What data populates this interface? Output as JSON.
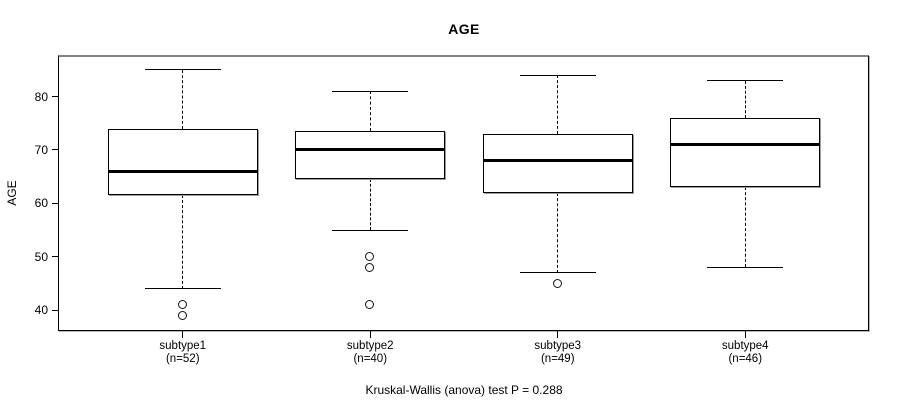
{
  "chart_data": {
    "type": "boxplot",
    "title": "AGE",
    "ylabel": "AGE",
    "xlabel": "",
    "footer": "Kruskal-Wallis (anova) test P = 0.288",
    "yticks": [
      40,
      50,
      60,
      70,
      80
    ],
    "ylim": [
      36.1,
      87.4
    ],
    "grid": false,
    "groups": [
      {
        "label": "subtype1",
        "n_label": "(n=52)",
        "n": 52,
        "whisker_low": 44,
        "q1": 61.5,
        "median": 66,
        "q3": 74,
        "whisker_high": 85,
        "outliers": [
          41,
          39
        ]
      },
      {
        "label": "subtype2",
        "n_label": "(n=40)",
        "n": 40,
        "whisker_low": 55,
        "q1": 64.5,
        "median": 70,
        "q3": 73.5,
        "whisker_high": 81,
        "outliers": [
          50,
          48,
          41
        ]
      },
      {
        "label": "subtype3",
        "n_label": "(n=49)",
        "n": 49,
        "whisker_low": 47,
        "q1": 62,
        "median": 68,
        "q3": 73,
        "whisker_high": 84,
        "outliers": [
          45
        ]
      },
      {
        "label": "subtype4",
        "n_label": "(n=46)",
        "n": 46,
        "whisker_low": 48,
        "q1": 63,
        "median": 71,
        "q3": 76,
        "whisker_high": 83,
        "outliers": []
      }
    ]
  }
}
